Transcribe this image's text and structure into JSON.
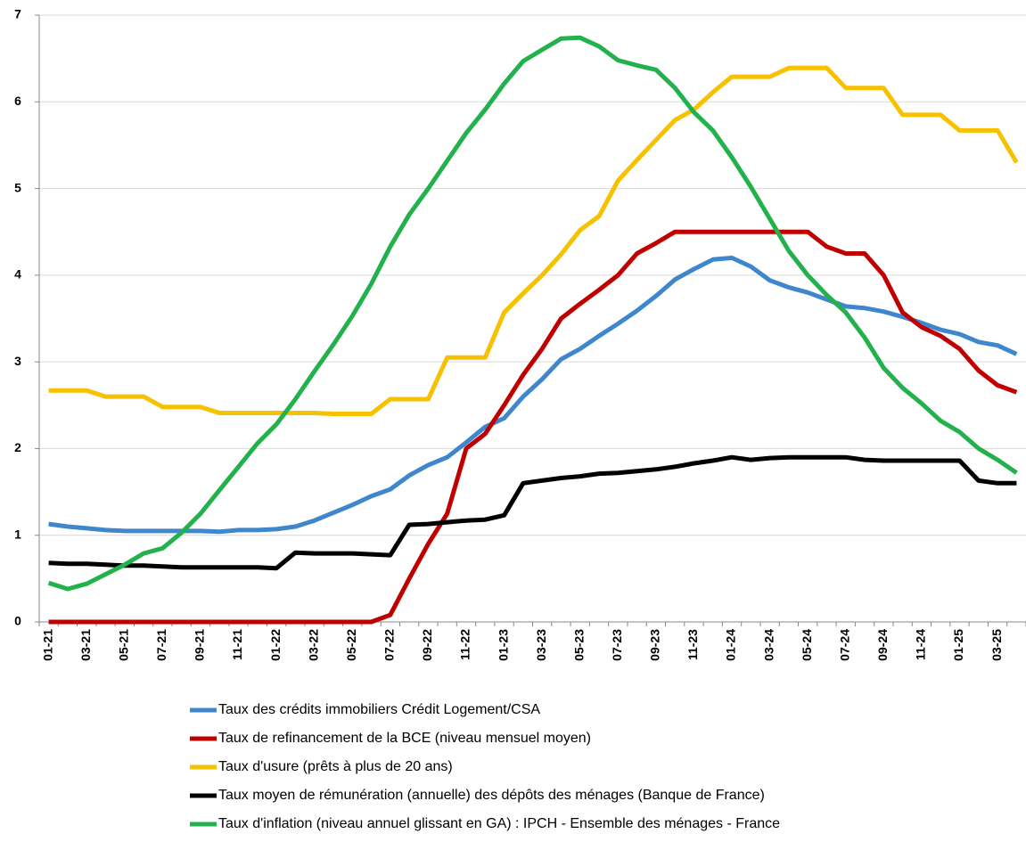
{
  "chart_data": {
    "type": "line",
    "categories": [
      "01-21",
      null,
      "03-21",
      null,
      "05-21",
      null,
      "07-21",
      null,
      "09-21",
      null,
      "11-21",
      null,
      "01-22",
      null,
      "03-22",
      null,
      "05-22",
      null,
      "07-22",
      null,
      "09-22",
      null,
      "11-22",
      null,
      "01-23",
      null,
      "03-23",
      null,
      "05-23",
      null,
      "07-23",
      null,
      "09-23",
      null,
      "11-23",
      null,
      "01-24",
      null,
      "03-24",
      null,
      "05-24",
      null,
      "07-24",
      null,
      "09-24",
      null,
      "11-24",
      null,
      "01-25",
      null,
      "03-25",
      null
    ],
    "series": [
      {
        "name": "Taux des crédits immobiliers Crédit Logement/CSA",
        "color": "#3f87cc",
        "values": [
          1.13,
          1.1,
          1.08,
          1.06,
          1.05,
          1.05,
          1.05,
          1.05,
          1.05,
          1.04,
          1.06,
          1.06,
          1.07,
          1.1,
          1.17,
          1.26,
          1.35,
          1.45,
          1.53,
          1.69,
          1.81,
          1.9,
          2.07,
          2.25,
          2.35,
          2.6,
          2.8,
          3.03,
          3.15,
          3.3,
          3.44,
          3.59,
          3.76,
          3.95,
          4.07,
          4.18,
          4.2,
          4.1,
          3.94,
          3.86,
          3.8,
          3.72,
          3.64,
          3.62,
          3.58,
          3.52,
          3.45,
          3.37,
          3.32,
          3.23,
          3.19,
          3.09
        ]
      },
      {
        "name": "Taux de refinancement de la BCE (niveau mensuel moyen)",
        "color": "#c00000",
        "values": [
          0,
          0,
          0,
          0,
          0,
          0,
          0,
          0,
          0,
          0,
          0,
          0,
          0,
          0,
          0,
          0,
          0,
          0,
          0.08,
          0.5,
          0.9,
          1.25,
          2.0,
          2.17,
          2.5,
          2.85,
          3.15,
          3.5,
          3.67,
          3.83,
          4.0,
          4.25,
          4.37,
          4.5,
          4.5,
          4.5,
          4.5,
          4.5,
          4.5,
          4.5,
          4.5,
          4.33,
          4.25,
          4.25,
          4.0,
          3.57,
          3.4,
          3.3,
          3.15,
          2.9,
          2.73,
          2.65
        ]
      },
      {
        "name": "Taux d'usure (prêts à plus de 20 ans)",
        "color": "#f7c100",
        "values": [
          2.67,
          2.67,
          2.67,
          2.6,
          2.6,
          2.6,
          2.48,
          2.48,
          2.48,
          2.41,
          2.41,
          2.41,
          2.41,
          2.41,
          2.41,
          2.4,
          2.4,
          2.4,
          2.57,
          2.57,
          2.57,
          3.05,
          3.05,
          3.05,
          3.57,
          3.79,
          4.0,
          4.24,
          4.52,
          4.68,
          5.09,
          5.33,
          5.56,
          5.79,
          5.91,
          6.11,
          6.29,
          6.29,
          6.29,
          6.39,
          6.39,
          6.39,
          6.16,
          6.16,
          6.16,
          5.85,
          5.85,
          5.85,
          5.67,
          5.67,
          5.67,
          5.3
        ]
      },
      {
        "name": "Taux moyen de rémunération (annuelle) des dépôts des ménages (Banque de France)",
        "color": "#000000",
        "values": [
          0.68,
          0.67,
          0.67,
          0.66,
          0.65,
          0.65,
          0.64,
          0.63,
          0.63,
          0.63,
          0.63,
          0.63,
          0.62,
          0.8,
          0.79,
          0.79,
          0.79,
          0.78,
          0.77,
          1.12,
          1.13,
          1.15,
          1.17,
          1.18,
          1.23,
          1.6,
          1.63,
          1.66,
          1.68,
          1.71,
          1.72,
          1.74,
          1.76,
          1.79,
          1.83,
          1.86,
          1.9,
          1.87,
          1.89,
          1.9,
          1.9,
          1.9,
          1.9,
          1.87,
          1.86,
          1.86,
          1.86,
          1.86,
          1.86,
          1.63,
          1.6,
          1.6
        ]
      },
      {
        "name": "Taux d'inflation (niveau annuel glissant en GA) : IPCH - Ensemble des ménages - France",
        "color": "#22b14c",
        "values": [
          0.45,
          0.38,
          0.44,
          0.55,
          0.66,
          0.79,
          0.85,
          1.03,
          1.25,
          1.52,
          1.79,
          2.06,
          2.28,
          2.57,
          2.89,
          3.2,
          3.53,
          3.9,
          4.33,
          4.7,
          5.0,
          5.32,
          5.64,
          5.91,
          6.21,
          6.47,
          6.6,
          6.73,
          6.74,
          6.64,
          6.48,
          6.42,
          6.37,
          6.16,
          5.88,
          5.67,
          5.36,
          5.02,
          4.65,
          4.28,
          4.0,
          3.77,
          3.57,
          3.28,
          2.93,
          2.7,
          2.52,
          2.32,
          2.19,
          2.0,
          1.87,
          1.72
        ]
      }
    ],
    "ylim": [
      0,
      7
    ],
    "yticks": [
      0,
      1,
      2,
      3,
      4,
      5,
      6,
      7
    ],
    "grid": true
  }
}
